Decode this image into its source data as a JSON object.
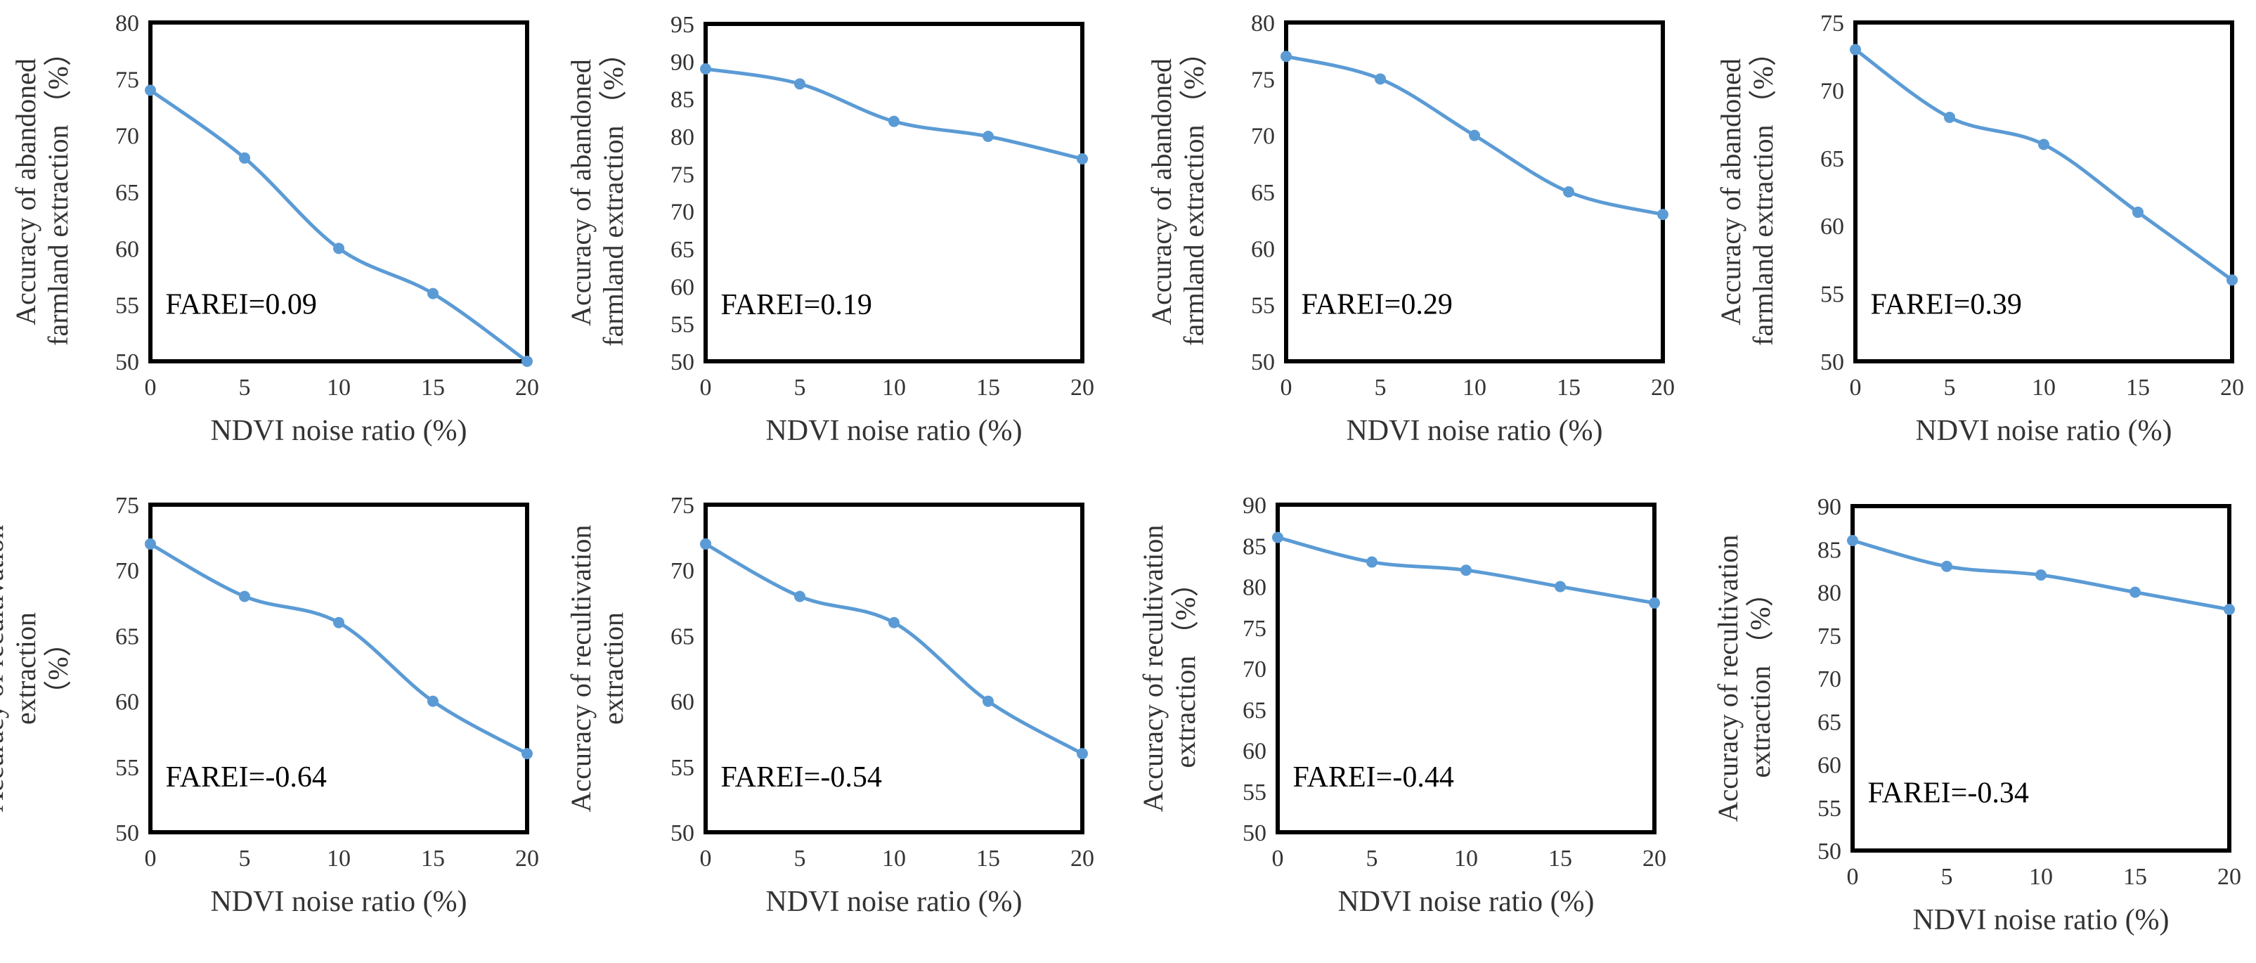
{
  "figure": {
    "line_color": "#5B9BD5",
    "frame_color": "#000000"
  },
  "chart_data": [
    {
      "type": "line",
      "x": [
        0,
        5,
        10,
        15,
        20
      ],
      "values": [
        74,
        68,
        60,
        56,
        50
      ],
      "ylim": [
        50,
        80
      ],
      "ystep": 5,
      "xtick_labels": [
        "0",
        "5",
        "10",
        "15",
        "20"
      ],
      "ytick_labels": [
        "50",
        "55",
        "60",
        "65",
        "70",
        "75",
        "80"
      ],
      "xlabel": "NDVI noise ratio (%)",
      "ylabel_lines": [
        "Accuracy of abandoned",
        "farmland extraction （%）"
      ],
      "annotation": "FAREI=0.09"
    },
    {
      "type": "line",
      "x": [
        0,
        5,
        10,
        15,
        20
      ],
      "values": [
        89,
        87,
        82,
        80,
        77
      ],
      "ylim": [
        50,
        95
      ],
      "ystep": 5,
      "xtick_labels": [
        "0",
        "5",
        "10",
        "15",
        "20"
      ],
      "ytick_labels": [
        "50",
        "55",
        "60",
        "65",
        "70",
        "75",
        "80",
        "85",
        "90",
        "95"
      ],
      "xlabel": "NDVI noise ratio (%)",
      "ylabel_lines": [
        "Accuracy of abandoned",
        "farmland extraction （%）"
      ],
      "annotation": "FAREI=0.19"
    },
    {
      "type": "line",
      "x": [
        0,
        5,
        10,
        15,
        20
      ],
      "values": [
        77,
        75,
        70,
        65,
        63
      ],
      "ylim": [
        50,
        80
      ],
      "ystep": 5,
      "xtick_labels": [
        "0",
        "5",
        "10",
        "15",
        "20"
      ],
      "ytick_labels": [
        "50",
        "55",
        "60",
        "65",
        "70",
        "75",
        "80"
      ],
      "xlabel": "NDVI noise ratio (%)",
      "ylabel_lines": [
        "Accuracy of abandoned",
        "farmland extraction （%）"
      ],
      "annotation": "FAREI=0.29"
    },
    {
      "type": "line",
      "x": [
        0,
        5,
        10,
        15,
        20
      ],
      "values": [
        73,
        68,
        66,
        61,
        56
      ],
      "ylim": [
        50,
        75
      ],
      "ystep": 5,
      "xtick_labels": [
        "0",
        "5",
        "10",
        "15",
        "20"
      ],
      "ytick_labels": [
        "50",
        "55",
        "60",
        "65",
        "70",
        "75"
      ],
      "xlabel": "NDVI noise ratio (%)",
      "ylabel_lines": [
        "Accuracy of abandoned",
        "farmland extraction （%）"
      ],
      "annotation": "FAREI=0.39"
    },
    {
      "type": "line",
      "x": [
        0,
        5,
        10,
        15,
        20
      ],
      "values": [
        72,
        68,
        66,
        60,
        56
      ],
      "ylim": [
        50,
        75
      ],
      "ystep": 5,
      "xtick_labels": [
        "0",
        "5",
        "10",
        "15",
        "20"
      ],
      "ytick_labels": [
        "50",
        "55",
        "60",
        "65",
        "70",
        "75"
      ],
      "xlabel": "NDVI noise ratio (%)",
      "ylabel_lines": [
        "Accuracy of  recultivation",
        "extraction",
        "（%）"
      ],
      "annotation": "FAREI=-0.64"
    },
    {
      "type": "line",
      "x": [
        0,
        5,
        10,
        15,
        20
      ],
      "values": [
        72,
        68,
        66,
        60,
        56
      ],
      "ylim": [
        50,
        75
      ],
      "ystep": 5,
      "xtick_labels": [
        "0",
        "5",
        "10",
        "15",
        "20"
      ],
      "ytick_labels": [
        "50",
        "55",
        "60",
        "65",
        "70",
        "75"
      ],
      "xlabel": "NDVI noise ratio (%)",
      "ylabel_lines": [
        "Accuracy of  recultivation",
        "extraction"
      ],
      "annotation": "FAREI=-0.54"
    },
    {
      "type": "line",
      "x": [
        0,
        5,
        10,
        15,
        20
      ],
      "values": [
        86,
        83,
        82,
        80,
        78
      ],
      "ylim": [
        50,
        90
      ],
      "ystep": 5,
      "xtick_labels": [
        "0",
        "5",
        "10",
        "15",
        "20"
      ],
      "ytick_labels": [
        "50",
        "55",
        "60",
        "65",
        "70",
        "75",
        "80",
        "85",
        "90"
      ],
      "xlabel": "NDVI noise ratio (%)",
      "ylabel_lines": [
        "Accuracy of  recultivation",
        "extraction （%）"
      ],
      "annotation": "FAREI=-0.44"
    },
    {
      "type": "line",
      "x": [
        0,
        5,
        10,
        15,
        20
      ],
      "values": [
        86,
        83,
        82,
        80,
        78
      ],
      "ylim": [
        50,
        90
      ],
      "ystep": 5,
      "xtick_labels": [
        "0",
        "5",
        "10",
        "15",
        "20"
      ],
      "ytick_labels": [
        "50",
        "55",
        "60",
        "65",
        "70",
        "75",
        "80",
        "85",
        "90"
      ],
      "xlabel": "NDVI noise ratio (%)",
      "ylabel_lines": [
        "Accuracy of  recultivation",
        "extraction （%）"
      ],
      "annotation": "FAREI=-0.34"
    }
  ]
}
